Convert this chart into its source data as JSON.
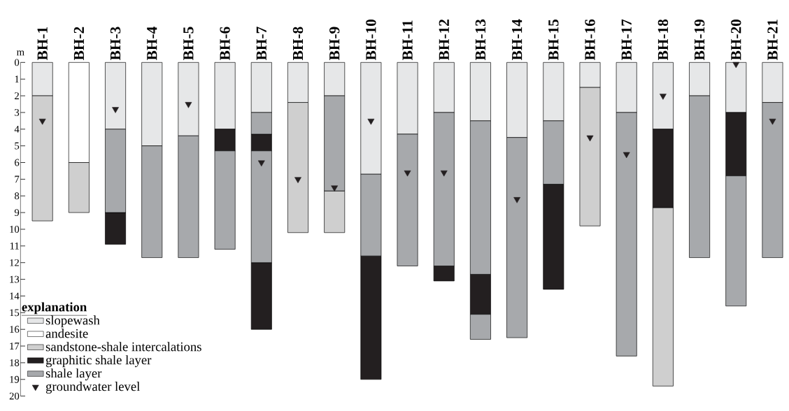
{
  "chart_data": {
    "type": "bar",
    "ylabel": "m",
    "legend_title": "explanation",
    "legend": "bottom left",
    "marker": "triangle",
    "categories": [
      "BH-1",
      "BH-2",
      "BH-3",
      "BH-4",
      "BH-5",
      "BH-6",
      "BH-7",
      "BH-8",
      "BH-9",
      "BH-10",
      "BH-11",
      "BH-12",
      "BH-13",
      "BH-14",
      "BH-15",
      "BH-16",
      "BH-17",
      "BH-18",
      "BH-19",
      "BH-20",
      "BH-21"
    ],
    "ylim": [
      20,
      0
    ],
    "yticks": [
      0,
      1,
      2,
      3,
      4,
      5,
      6,
      7,
      8,
      9,
      10,
      11,
      12,
      13,
      14,
      15,
      16,
      17,
      18,
      19,
      20
    ],
    "series": [
      {
        "name": "slopewash",
        "color": "#e6e7e8",
        "values": [
          2,
          null,
          4,
          5,
          4.4,
          4,
          3,
          2.4,
          2,
          6.7,
          4.3,
          3,
          3.5,
          4.5,
          3.5,
          1.5,
          3,
          4,
          2,
          3,
          2.4
        ],
        "base": [
          0,
          null,
          0,
          0,
          0,
          0,
          0,
          0,
          0,
          0,
          0,
          0,
          0,
          0,
          0,
          0,
          0,
          0,
          0,
          0,
          0
        ]
      },
      {
        "name": "andesite",
        "color": "#ffffff",
        "values": [
          null,
          6,
          null,
          null,
          null,
          null,
          null,
          null,
          null,
          null,
          null,
          null,
          null,
          null,
          null,
          null,
          null,
          null,
          null,
          null,
          null
        ],
        "base": [
          null,
          0,
          null,
          null,
          null,
          null,
          null,
          null,
          null,
          null,
          null,
          null,
          null,
          null,
          null,
          null,
          null,
          null,
          null,
          null,
          null
        ]
      },
      {
        "name": "sandstone-shale intercalations",
        "color": "#cfcfcf",
        "values": [
          7.5,
          3,
          null,
          null,
          null,
          null,
          null,
          7.8,
          2.5,
          null,
          null,
          null,
          null,
          null,
          null,
          8.3,
          null,
          10.7,
          null,
          null,
          null
        ],
        "base": [
          2,
          6,
          null,
          null,
          null,
          null,
          null,
          2.4,
          7.7,
          null,
          null,
          null,
          null,
          null,
          null,
          1.5,
          null,
          8.7,
          null,
          null,
          null
        ]
      },
      {
        "name": "graphitic shale layer",
        "color": "#231f20",
        "values": [
          null,
          null,
          1.9,
          null,
          null,
          1.3,
          1.0,
          null,
          null,
          7.4,
          null,
          0.9,
          2.4,
          null,
          6.3,
          null,
          null,
          4.7,
          null,
          3.8,
          null
        ],
        "base": [
          null,
          null,
          9,
          null,
          null,
          4,
          4.3,
          null,
          null,
          11.6,
          null,
          12.2,
          12.7,
          null,
          7.3,
          null,
          null,
          4,
          null,
          3,
          null
        ]
      },
      {
        "name": "shale layer",
        "color": "#a7a9ac",
        "values": [
          null,
          null,
          5,
          6.7,
          7.3,
          5.9,
          1.3,
          null,
          5.7,
          4.9,
          7.9,
          9.2,
          9.2,
          12,
          3.8,
          null,
          14.6,
          null,
          9.7,
          7.8,
          9.3
        ],
        "base": [
          null,
          null,
          4,
          5,
          4.4,
          5.3,
          3,
          null,
          2,
          6.7,
          4.3,
          3,
          3.5,
          4.5,
          3.5,
          null,
          3,
          null,
          2,
          6.8,
          2.4
        ]
      },
      {
        "color": "#231f20",
        "values": [
          null,
          null,
          null,
          null,
          null,
          null,
          4,
          null,
          null,
          null,
          null,
          null,
          null,
          null,
          null,
          null,
          null,
          null,
          null,
          null,
          null
        ],
        "base": [
          null,
          null,
          null,
          null,
          null,
          null,
          12,
          null,
          null,
          null,
          null,
          null,
          null,
          null,
          null,
          null,
          null,
          null,
          null,
          null,
          null
        ]
      },
      {
        "color": "#a7a9ac",
        "values": [
          null,
          null,
          null,
          null,
          null,
          null,
          6.7,
          null,
          null,
          null,
          null,
          null,
          1.5,
          null,
          null,
          null,
          null,
          null,
          null,
          null,
          null
        ],
        "base": [
          null,
          null,
          null,
          null,
          null,
          null,
          5.3,
          null,
          null,
          null,
          null,
          null,
          15.1,
          null,
          null,
          null,
          null,
          null,
          null,
          null,
          null
        ]
      },
      {
        "name": "groundwater level",
        "type": "scatter",
        "color": "#231f20",
        "values": [
          3.5,
          null,
          2.8,
          null,
          2.5,
          null,
          6.0,
          7.0,
          7.5,
          3.5,
          6.6,
          6.6,
          null,
          8.2,
          null,
          4.5,
          5.5,
          2.0,
          null,
          0.1,
          3.5
        ]
      }
    ]
  }
}
